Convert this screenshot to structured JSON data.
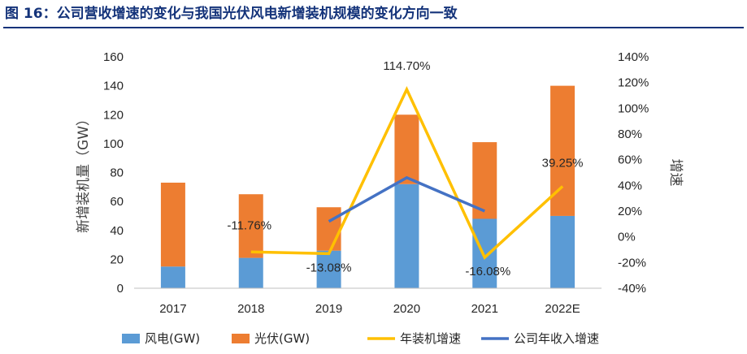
{
  "figure_title": "图 16：公司营收增速的变化与我国光伏风电新增装机规模的变化方向一致",
  "chart_data": {
    "type": "bar",
    "stacked": true,
    "categories": [
      "2017",
      "2018",
      "2019",
      "2020",
      "2021",
      "2022E"
    ],
    "series": [
      {
        "name": "风电(GW)",
        "type": "bar",
        "axis": "left",
        "color": "#5b9bd5",
        "values": [
          15,
          21,
          26,
          72,
          48,
          50
        ]
      },
      {
        "name": "光伏(GW)",
        "type": "bar",
        "axis": "left",
        "color": "#ed7d31",
        "values": [
          58,
          44,
          30,
          48,
          53,
          90
        ]
      },
      {
        "name": "年装机增速",
        "type": "line",
        "axis": "right",
        "color": "#ffc000",
        "values": [
          null,
          -11.76,
          -13.08,
          114.7,
          -16.08,
          39.25
        ]
      },
      {
        "name": "公司年收入增速",
        "type": "line",
        "axis": "right",
        "color": "#4472c4",
        "values": [
          null,
          null,
          12,
          46,
          20,
          null
        ]
      }
    ],
    "data_labels": [
      {
        "category": "2018",
        "text": "-11.76%"
      },
      {
        "category": "2019",
        "text": "-13.08%"
      },
      {
        "category": "2020",
        "text": "114.70%"
      },
      {
        "category": "2021",
        "text": "-16.08%"
      },
      {
        "category": "2022E",
        "text": "39.25%"
      }
    ],
    "ylabel": "新增装机量（GW）",
    "y2label": "增速",
    "ylim": [
      0,
      160
    ],
    "yticks": [
      "0",
      "20",
      "40",
      "60",
      "80",
      "100",
      "120",
      "140",
      "160"
    ],
    "y2lim": [
      -40,
      140
    ],
    "y2ticks": [
      "-40%",
      "-20%",
      "0%",
      "20%",
      "40%",
      "60%",
      "80%",
      "100%",
      "120%",
      "140%"
    ],
    "grid": false,
    "legend_position": "bottom"
  }
}
